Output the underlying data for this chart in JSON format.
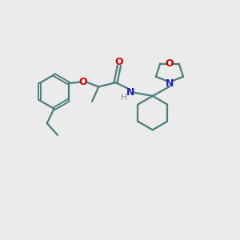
{
  "bg_color": "#ebebeb",
  "bond_color": "#4a7c7c",
  "N_color": "#2020bb",
  "O_color": "#cc0000",
  "H_color": "#7a9a9a",
  "line_width": 1.6,
  "figsize": [
    3.0,
    3.0
  ],
  "dpi": 100,
  "xlim": [
    0,
    10
  ],
  "ylim": [
    0,
    10
  ]
}
